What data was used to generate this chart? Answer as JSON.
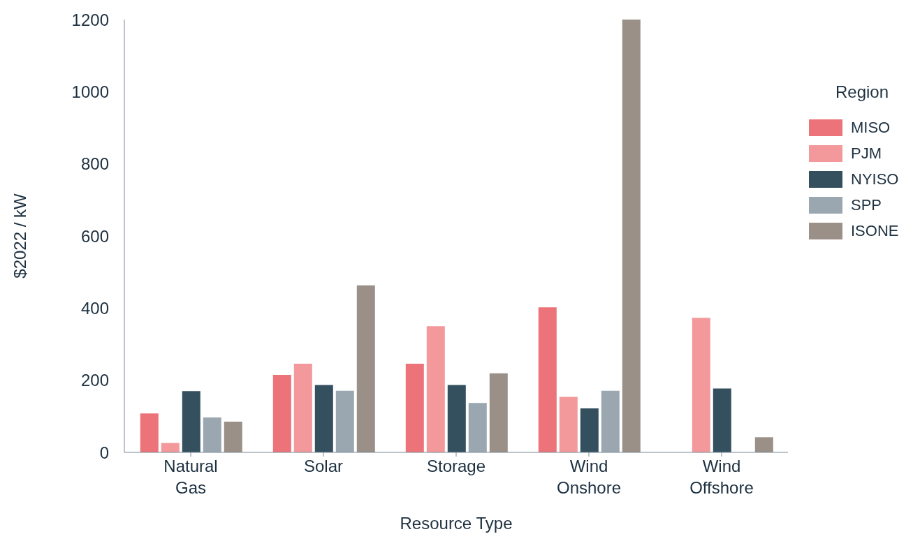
{
  "chart_data": {
    "type": "bar",
    "xlabel": "Resource Type",
    "ylabel": "$2022 / kW",
    "legend_title": "Region",
    "categories": [
      "Natural Gas",
      "Solar",
      "Storage",
      "Wind Onshore",
      "Wind Offshore"
    ],
    "series": [
      {
        "name": "MISO",
        "color": "#eb7379",
        "values": [
          108,
          215,
          246,
          402,
          null
        ]
      },
      {
        "name": "PJM",
        "color": "#f3989b",
        "values": [
          26,
          246,
          350,
          154,
          373
        ]
      },
      {
        "name": "NYISO",
        "color": "#34505f",
        "values": [
          170,
          187,
          187,
          122,
          177
        ]
      },
      {
        "name": "SPP",
        "color": "#9aa7b0",
        "values": [
          97,
          171,
          137,
          171,
          null
        ]
      },
      {
        "name": "ISONE",
        "color": "#9a9087",
        "values": [
          85,
          463,
          219,
          1200,
          42
        ]
      }
    ],
    "ylim": [
      0,
      1200
    ],
    "yticks": [
      0,
      200,
      400,
      600,
      800,
      1000,
      1200
    ],
    "grid": false,
    "legend": "right"
  }
}
